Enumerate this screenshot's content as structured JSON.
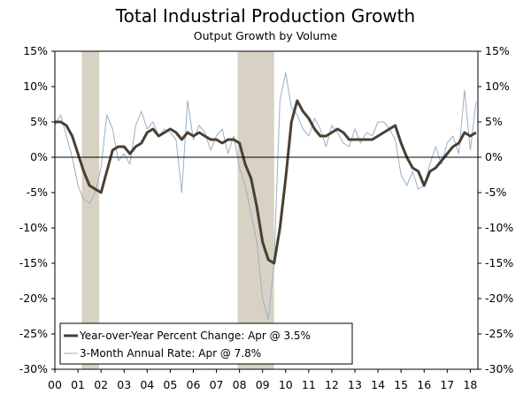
{
  "chart_data": {
    "type": "line",
    "title": "Total Industrial Production Growth",
    "subtitle": "Output Growth by Volume",
    "xlabel": "",
    "ylabel": "",
    "x_range": [
      2000.0,
      2018.33
    ],
    "ylim": [
      -30,
      15
    ],
    "y_ticks": [
      15,
      10,
      5,
      0,
      -5,
      -10,
      -15,
      -20,
      -25,
      -30
    ],
    "y_tick_labels": [
      "15%",
      "10%",
      "5%",
      "0%",
      "-5%",
      "-10%",
      "-15%",
      "-20%",
      "-25%",
      "-30%"
    ],
    "x_tick_labels": [
      "00",
      "01",
      "02",
      "03",
      "04",
      "05",
      "06",
      "07",
      "08",
      "09",
      "10",
      "11",
      "12",
      "13",
      "14",
      "15",
      "16",
      "17",
      "18"
    ],
    "grid": false,
    "zero_line": true,
    "recession_shading": [
      {
        "start": 2001.17,
        "end": 2001.92
      },
      {
        "start": 2007.92,
        "end": 2009.5
      }
    ],
    "legend": {
      "placement": "bottom-left",
      "entries": [
        "Year-over-Year Percent Change: Apr @ 3.5%",
        "3-Month Annual Rate: Apr @ 7.8%"
      ]
    },
    "series": [
      {
        "name": "Year-over-Year Percent Change: Apr @ 3.5%",
        "color": "#4a3f35",
        "x": [
          2000.0,
          2000.25,
          2000.5,
          2000.75,
          2001.0,
          2001.25,
          2001.5,
          2001.75,
          2002.0,
          2002.25,
          2002.5,
          2002.75,
          2003.0,
          2003.25,
          2003.5,
          2003.75,
          2004.0,
          2004.25,
          2004.5,
          2004.75,
          2005.0,
          2005.25,
          2005.5,
          2005.75,
          2006.0,
          2006.25,
          2006.5,
          2006.75,
          2007.0,
          2007.25,
          2007.5,
          2007.75,
          2008.0,
          2008.25,
          2008.5,
          2008.75,
          2009.0,
          2009.25,
          2009.5,
          2009.75,
          2010.0,
          2010.25,
          2010.5,
          2010.75,
          2011.0,
          2011.25,
          2011.5,
          2011.75,
          2012.0,
          2012.25,
          2012.5,
          2012.75,
          2013.0,
          2013.25,
          2013.5,
          2013.75,
          2014.0,
          2014.25,
          2014.5,
          2014.75,
          2015.0,
          2015.25,
          2015.5,
          2015.75,
          2016.0,
          2016.25,
          2016.5,
          2016.75,
          2017.0,
          2017.25,
          2017.5,
          2017.75,
          2018.0,
          2018.25
        ],
        "values": [
          5.0,
          5.0,
          4.5,
          3.0,
          0.5,
          -2.0,
          -4.0,
          -4.5,
          -5.0,
          -2.0,
          1.0,
          1.5,
          1.5,
          0.5,
          1.5,
          2.0,
          3.5,
          4.0,
          3.0,
          3.5,
          4.0,
          3.5,
          2.5,
          3.5,
          3.0,
          3.5,
          3.0,
          2.5,
          2.5,
          2.0,
          2.5,
          2.5,
          2.0,
          -1.0,
          -3.0,
          -7.0,
          -12.0,
          -14.5,
          -15.0,
          -10.0,
          -3.0,
          5.0,
          8.0,
          6.5,
          5.5,
          4.0,
          3.0,
          3.0,
          3.5,
          4.0,
          3.5,
          2.5,
          2.5,
          2.5,
          2.5,
          2.5,
          3.0,
          3.5,
          4.0,
          4.5,
          2.0,
          0.0,
          -1.5,
          -2.0,
          -4.0,
          -2.0,
          -1.5,
          -0.5,
          0.5,
          1.5,
          2.0,
          3.5,
          3.0,
          3.5
        ]
      },
      {
        "name": "3-Month Annual Rate: Apr @ 7.8%",
        "color": "#9ab0c4",
        "x": [
          2000.0,
          2000.25,
          2000.5,
          2000.75,
          2001.0,
          2001.25,
          2001.5,
          2001.75,
          2002.0,
          2002.25,
          2002.5,
          2002.75,
          2003.0,
          2003.25,
          2003.5,
          2003.75,
          2004.0,
          2004.25,
          2004.5,
          2004.75,
          2005.0,
          2005.25,
          2005.5,
          2005.75,
          2006.0,
          2006.25,
          2006.5,
          2006.75,
          2007.0,
          2007.25,
          2007.5,
          2007.75,
          2008.0,
          2008.25,
          2008.5,
          2008.75,
          2009.0,
          2009.25,
          2009.5,
          2009.75,
          2010.0,
          2010.25,
          2010.5,
          2010.75,
          2011.0,
          2011.25,
          2011.5,
          2011.75,
          2012.0,
          2012.25,
          2012.5,
          2012.75,
          2013.0,
          2013.25,
          2013.5,
          2013.75,
          2014.0,
          2014.25,
          2014.5,
          2014.75,
          2015.0,
          2015.25,
          2015.5,
          2015.75,
          2016.0,
          2016.25,
          2016.5,
          2016.75,
          2017.0,
          2017.25,
          2017.5,
          2017.75,
          2018.0,
          2018.25
        ],
        "values": [
          4.5,
          6.0,
          3.0,
          0.0,
          -4.0,
          -6.0,
          -6.5,
          -5.0,
          -1.5,
          6.0,
          4.0,
          -0.5,
          0.5,
          -1.0,
          4.5,
          6.5,
          4.0,
          5.0,
          3.0,
          4.0,
          3.5,
          2.5,
          -5.0,
          8.0,
          2.5,
          4.5,
          3.5,
          1.0,
          3.0,
          4.0,
          0.5,
          3.0,
          -1.5,
          -4.0,
          -8.0,
          -12.0,
          -20.0,
          -23.0,
          -15.0,
          8.0,
          12.0,
          7.0,
          6.0,
          4.0,
          3.0,
          5.5,
          4.0,
          1.5,
          4.5,
          3.5,
          2.0,
          1.5,
          4.0,
          2.0,
          3.5,
          3.0,
          5.0,
          5.0,
          4.0,
          2.5,
          -2.5,
          -4.0,
          -2.0,
          -4.5,
          -4.0,
          -1.0,
          1.5,
          -1.0,
          2.0,
          3.0,
          0.5,
          9.5,
          1.0,
          7.8
        ]
      }
    ]
  }
}
